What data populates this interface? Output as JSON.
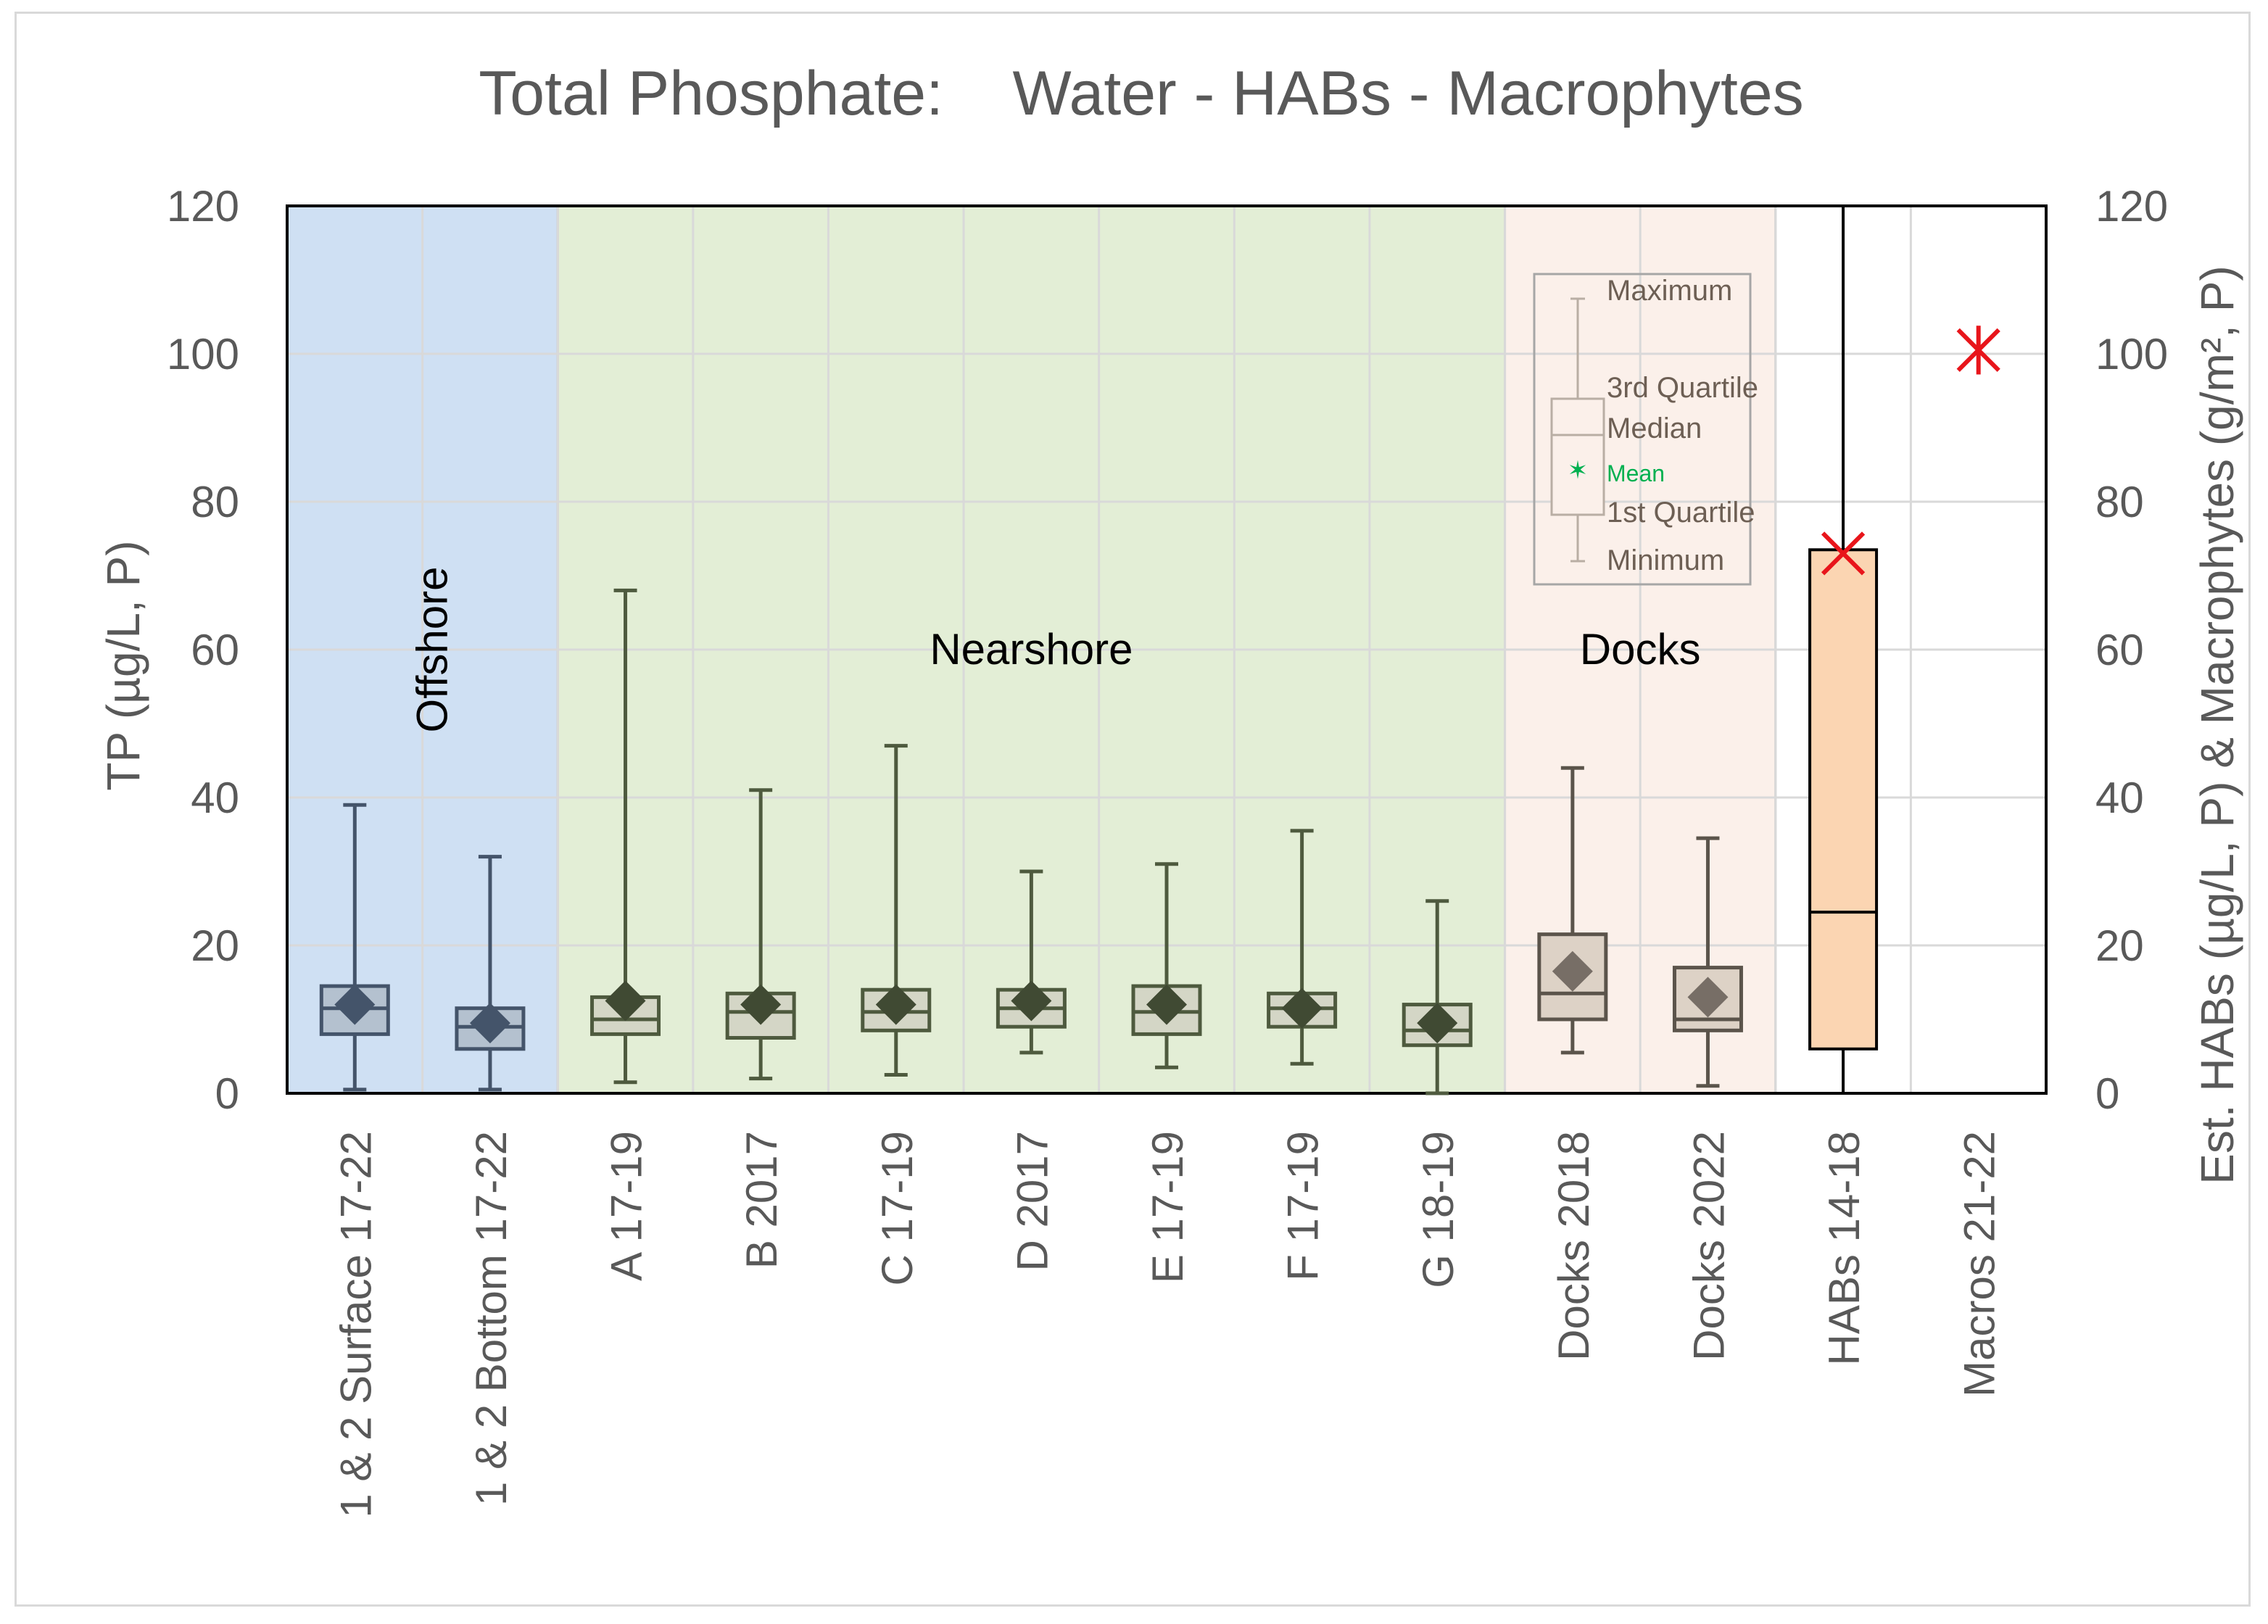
{
  "chart_data": {
    "type": "boxplot",
    "title": "Total Phosphate:    Water - HABs - Macrophytes",
    "ylabel_left": "TP (µg/L, P)",
    "ylabel_right": "Est. HABs (µg/L, P) & Macrophytes (g/m², P)",
    "ylim": [
      0,
      120
    ],
    "yticks": [
      0,
      20,
      40,
      60,
      80,
      100,
      120
    ],
    "grid": true,
    "regions": [
      {
        "label": "Offshore",
        "categories": [
          0,
          1
        ],
        "fill": "#cfe0f3"
      },
      {
        "label": "Nearshore",
        "categories": [
          2,
          8
        ],
        "fill": "#e3eed6"
      },
      {
        "label": "Docks",
        "categories": [
          9,
          10
        ],
        "fill": "#fbf0ea"
      }
    ],
    "categories": [
      "1 & 2 Surface 17-22",
      "1 & 2 Bottom 17-22",
      "A 17-19",
      "B 2017",
      "C 17-19",
      "D 2017",
      "E  17-19",
      "F 17-19",
      "G 18-19",
      "Docks 2018",
      "Docks 2022",
      "HABs 14-18",
      "Macros 21-22"
    ],
    "boxes": [
      {
        "min": 0.5,
        "q1": 8,
        "median": 11.5,
        "q3": 14.5,
        "max": 39,
        "mean": 12,
        "style": "offshore"
      },
      {
        "min": 0.5,
        "q1": 6,
        "median": 9,
        "q3": 11.5,
        "max": 32,
        "mean": 9.5,
        "style": "offshore"
      },
      {
        "min": 1.5,
        "q1": 8,
        "median": 10,
        "q3": 13,
        "max": 68,
        "mean": 12.5,
        "style": "nearshore"
      },
      {
        "min": 2,
        "q1": 7.5,
        "median": 11,
        "q3": 13.5,
        "max": 41,
        "mean": 12,
        "style": "nearshore"
      },
      {
        "min": 2.5,
        "q1": 8.5,
        "median": 11,
        "q3": 14,
        "max": 47,
        "mean": 12,
        "style": "nearshore"
      },
      {
        "min": 5.5,
        "q1": 9,
        "median": 11.5,
        "q3": 14,
        "max": 30,
        "mean": 12.5,
        "style": "nearshore"
      },
      {
        "min": 3.5,
        "q1": 8,
        "median": 11,
        "q3": 14.5,
        "max": 31,
        "mean": 12,
        "style": "nearshore"
      },
      {
        "min": 4,
        "q1": 9,
        "median": 11.5,
        "q3": 13.5,
        "max": 35.5,
        "mean": 11.5,
        "style": "nearshore"
      },
      {
        "min": 0,
        "q1": 6.5,
        "median": 8.5,
        "q3": 12,
        "max": 26,
        "mean": 9.5,
        "style": "nearshore"
      },
      {
        "min": 5.5,
        "q1": 10,
        "median": 13.5,
        "q3": 21.5,
        "max": 44,
        "mean": 16.5,
        "style": "docks"
      },
      {
        "min": 1,
        "q1": 8.5,
        "median": 10,
        "q3": 17,
        "max": 34.5,
        "mean": 13,
        "style": "docks"
      },
      {
        "min": 0,
        "q1": 6,
        "median": 24.5,
        "q3": 73.5,
        "max": 120,
        "mean": 73,
        "style": "habs"
      },
      {
        "mean": 100.5,
        "style": "macros"
      }
    ],
    "legend": {
      "placement": "inside Docks region, top",
      "items": [
        "Maximum",
        "3rd Quartile",
        "Median",
        "Mean",
        "1st Quartile",
        "Minimum"
      ]
    },
    "colors": {
      "offshore_fill": "#cfe0f3",
      "nearshore_fill": "#e3eed6",
      "docks_fill": "#fbf0ea",
      "grid": "#d9d9d9",
      "offshore_box": "#b4c1cf",
      "offshore_line": "#44546a",
      "nearshore_box": "#d4d6c6",
      "nearshore_line": "#4e5a3e",
      "nearshore_marker": "#404a33",
      "docks_box": "#ddd2c6",
      "docks_line": "#5b544b",
      "docks_marker": "#776e66",
      "habs_box": "#fbd5b2",
      "mean_star": "#e8151b",
      "legend_text": "#6d5f54",
      "legend_mean": "#00b050",
      "axis_text": "#595959"
    }
  }
}
